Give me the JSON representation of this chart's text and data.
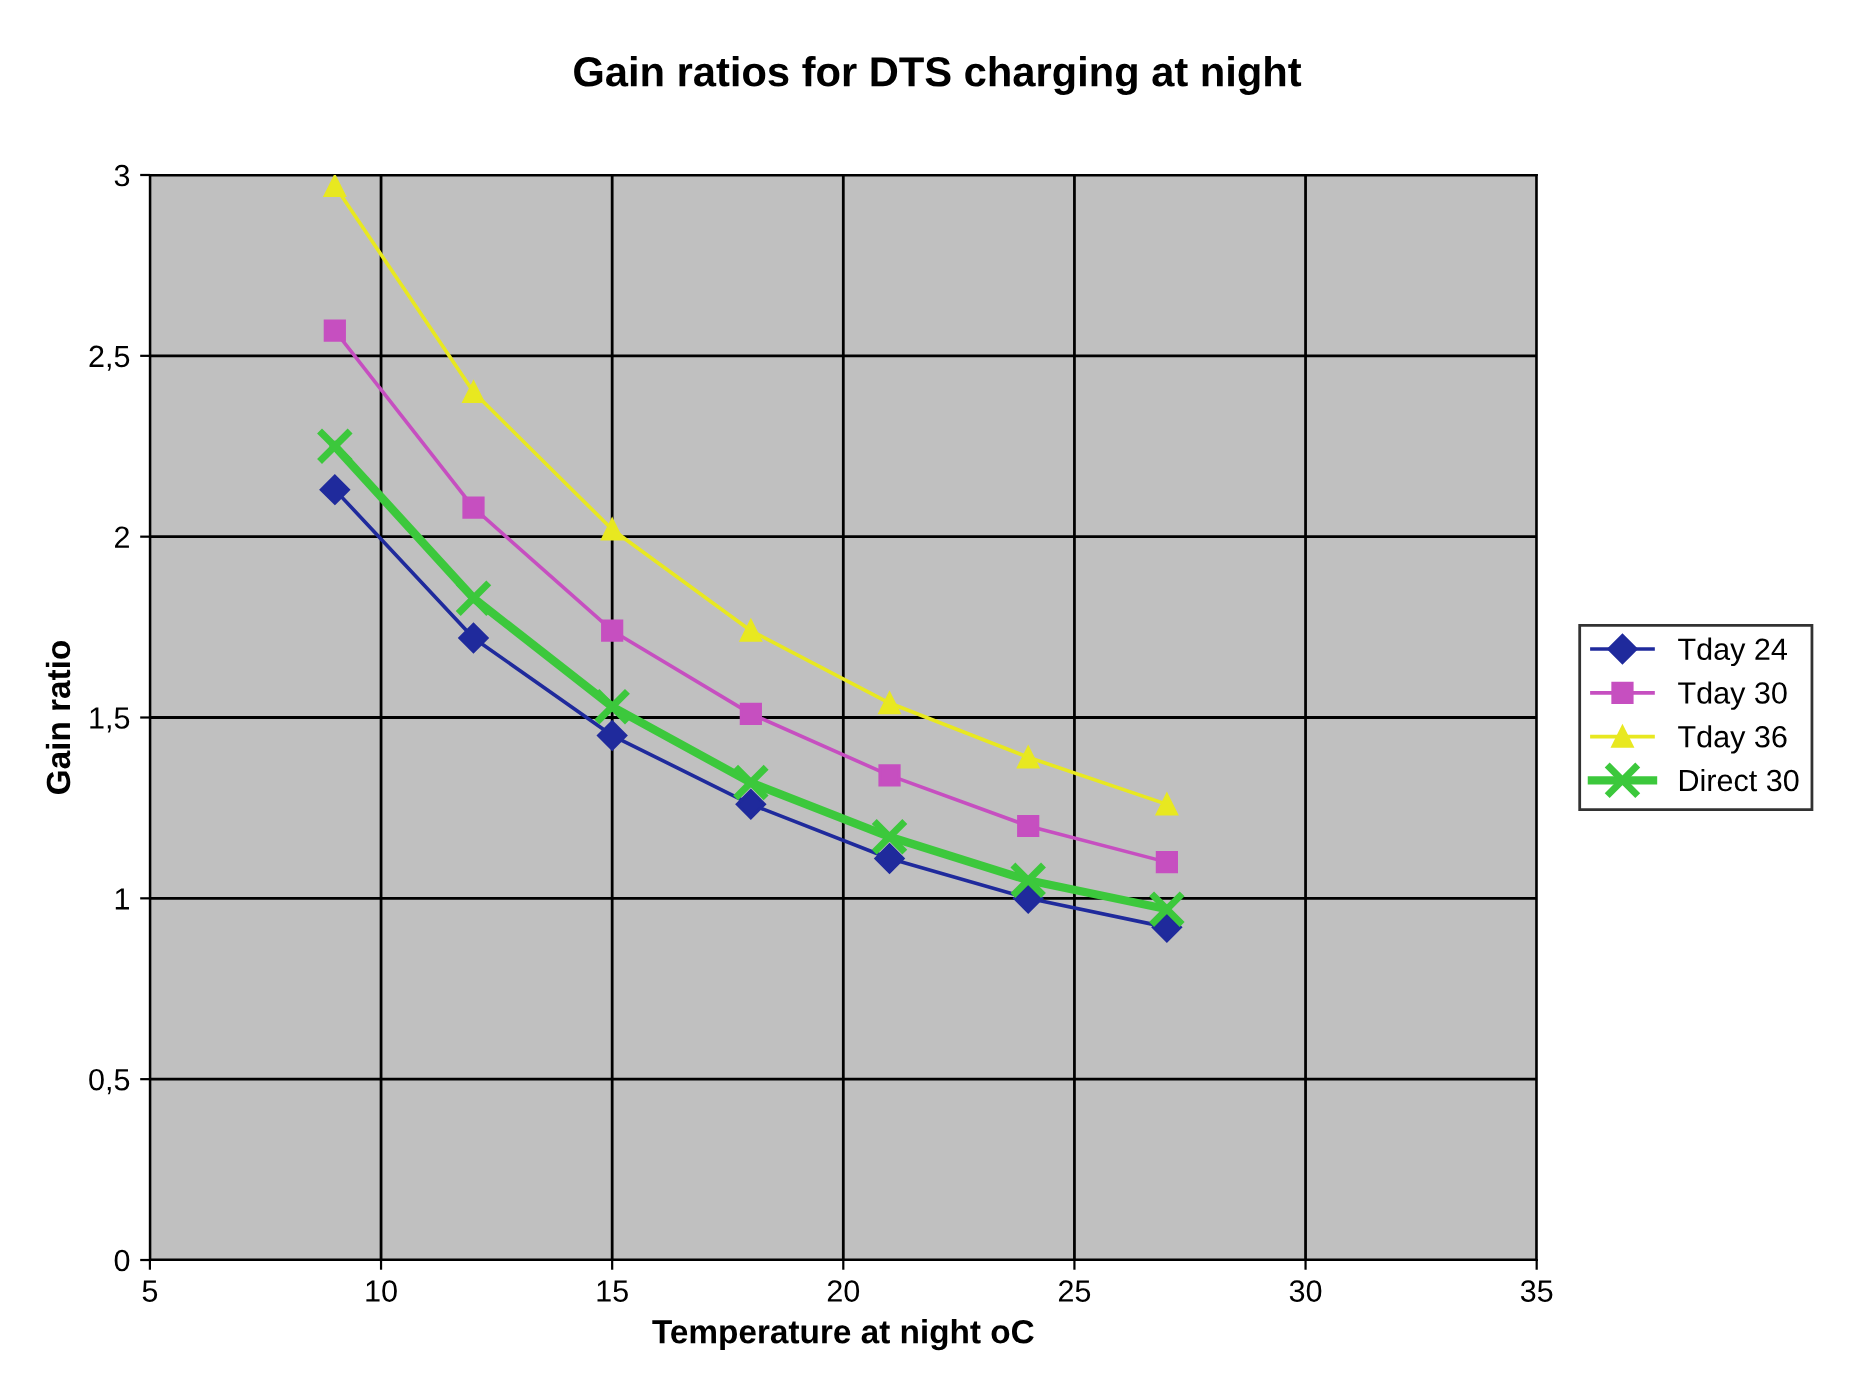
{
  "chart_data": {
    "type": "line",
    "title": "Gain ratios for DTS charging at night",
    "xlabel": "Temperature at night oC",
    "ylabel": "Gain ratio",
    "x": [
      9,
      12,
      15,
      18,
      21,
      24,
      27
    ],
    "series": [
      {
        "name": "Tday 24",
        "color": "#1f2a9c",
        "marker": "diamond",
        "values": [
          2.13,
          1.72,
          1.45,
          1.26,
          1.11,
          1.0,
          0.92
        ]
      },
      {
        "name": "Tday 30",
        "color": "#c64fc0",
        "marker": "square",
        "values": [
          2.57,
          2.08,
          1.74,
          1.51,
          1.34,
          1.2,
          1.1
        ]
      },
      {
        "name": "Tday 36",
        "color": "#e8e820",
        "marker": "triangle",
        "values": [
          2.97,
          2.4,
          2.02,
          1.74,
          1.54,
          1.39,
          1.26
        ]
      },
      {
        "name": "Direct 30",
        "color": "#3cc83c",
        "marker": "cross",
        "values": [
          2.25,
          1.83,
          1.53,
          1.32,
          1.17,
          1.05,
          0.97
        ]
      }
    ],
    "xlim": [
      5,
      35
    ],
    "xticks": [
      5,
      10,
      15,
      20,
      25,
      30,
      35
    ],
    "ylim": [
      0,
      3
    ],
    "yticks": [
      0,
      {
        "value": 0.5,
        "label": "0,5"
      },
      1,
      {
        "value": 1.5,
        "label": "1,5"
      },
      2,
      {
        "value": 2.5,
        "label": "2,5"
      },
      3
    ],
    "grid": true,
    "legend": "right",
    "line_style": "solid"
  }
}
